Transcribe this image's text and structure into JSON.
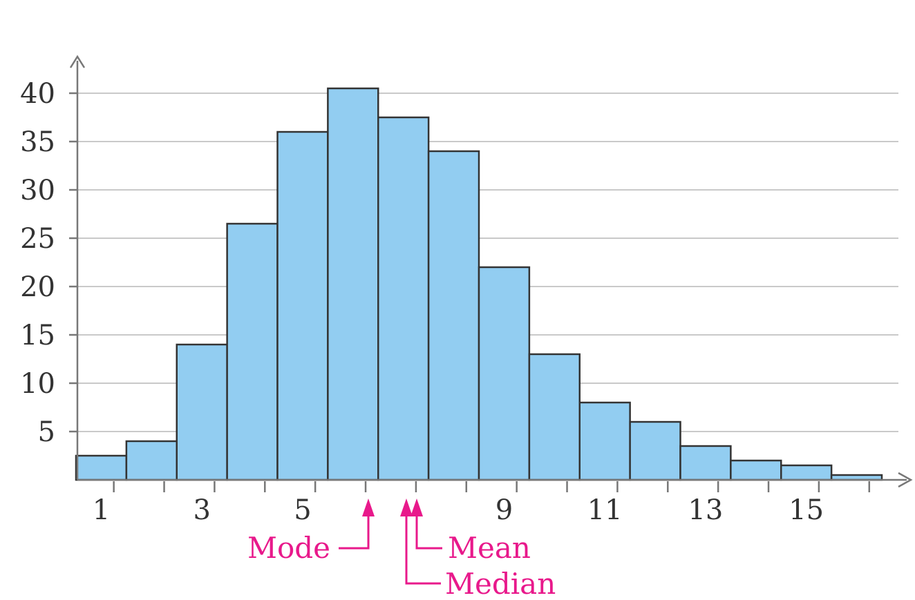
{
  "chart_data": {
    "type": "bar",
    "title": "",
    "xlabel": "",
    "ylabel": "",
    "x": [
      1,
      2,
      3,
      4,
      5,
      6,
      7,
      8,
      9,
      10,
      11,
      12,
      13,
      14,
      15,
      16
    ],
    "values": [
      2.5,
      4,
      14,
      26.5,
      36,
      40.5,
      37.5,
      34,
      22,
      13,
      8,
      6,
      3.5,
      2,
      1.5,
      0.5
    ],
    "xlim": [
      0.5,
      16.5
    ],
    "ylim": [
      0,
      40
    ],
    "x_tick_labels": [
      "1",
      "3",
      "5",
      "9",
      "11",
      "13",
      "15"
    ],
    "y_ticks": [
      5,
      10,
      15,
      20,
      25,
      30,
      35,
      40
    ],
    "grid": true,
    "bar_color": "#92cdf1",
    "annotations": [
      {
        "label": "Mode",
        "x": 6
      },
      {
        "label": "Median",
        "x": 6.75
      },
      {
        "label": "Mean",
        "x": 6.95
      }
    ],
    "annotation_color": "#e8198b"
  }
}
